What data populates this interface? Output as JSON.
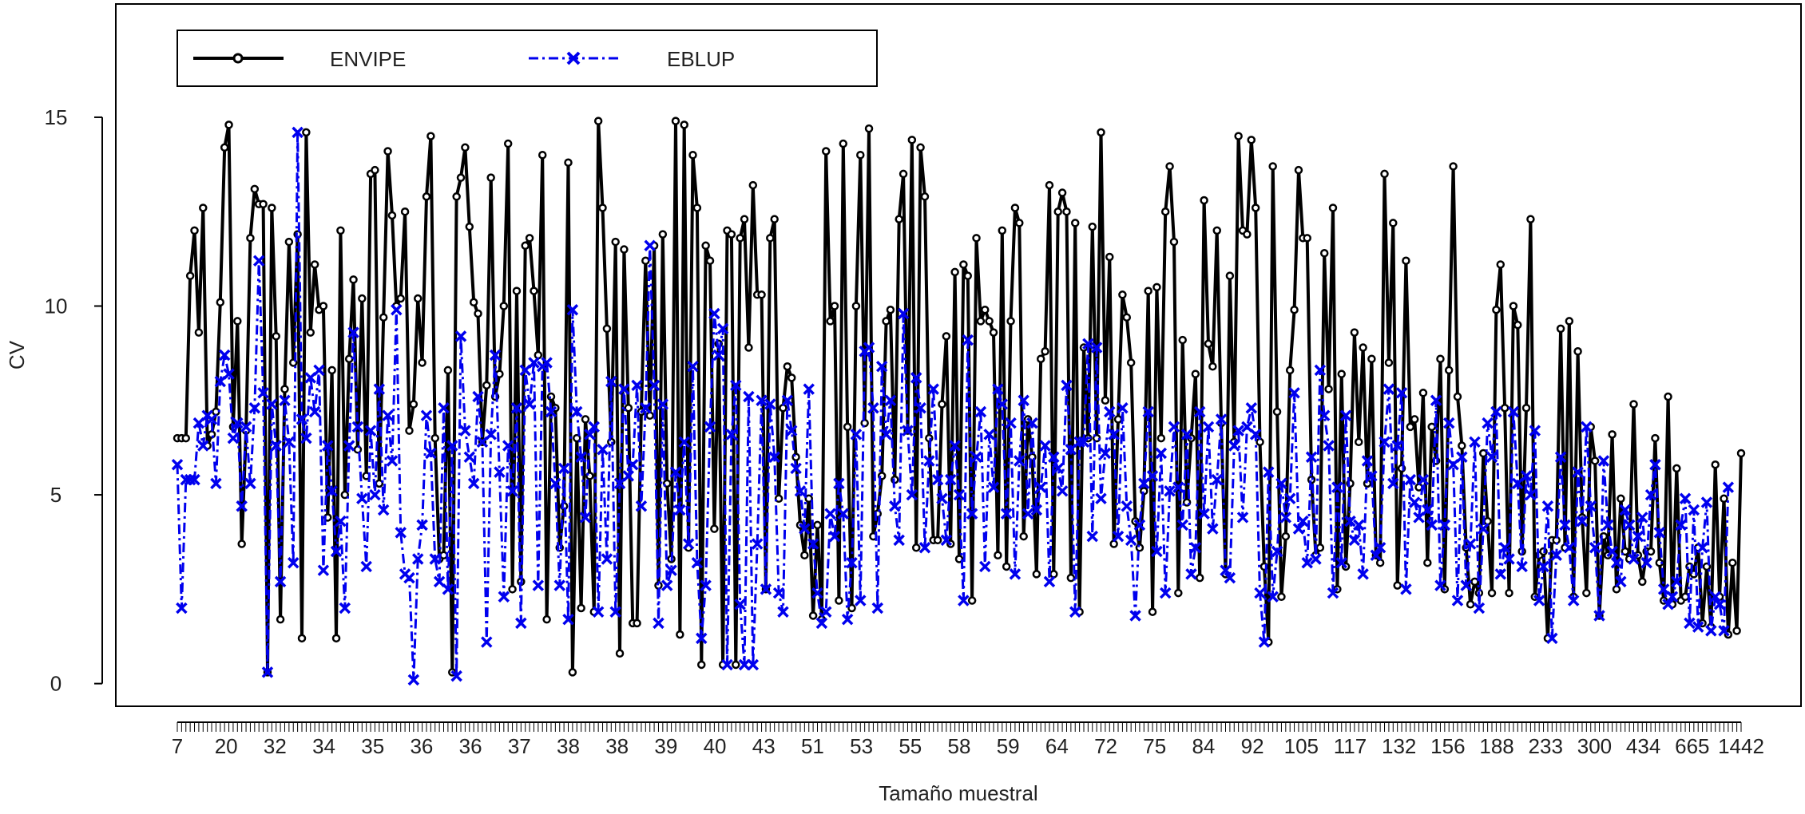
{
  "chart_data": {
    "type": "line",
    "xlabel": "Tamaño muestral",
    "ylabel": "CV",
    "ylim": [
      -0.6,
      18
    ],
    "yticks": [
      0,
      5,
      10,
      15
    ],
    "grid": false,
    "legend_position": "top-left",
    "x_tick_labels": [
      "7",
      "20",
      "32",
      "34",
      "35",
      "36",
      "36",
      "37",
      "38",
      "38",
      "39",
      "40",
      "43",
      "51",
      "53",
      "55",
      "58",
      "59",
      "64",
      "72",
      "75",
      "84",
      "92",
      "105",
      "117",
      "132",
      "156",
      "188",
      "233",
      "300",
      "434",
      "665",
      "1442"
    ],
    "series": [
      {
        "name": "ENVIPE",
        "color": "#000000",
        "marker": "circle",
        "line_style": "solid",
        "values": [
          6.5,
          6.5,
          6.5,
          10.8,
          12,
          9.3,
          12.6,
          6.3,
          6.6,
          7.2,
          10.1,
          14.2,
          14.8,
          6.8,
          9.6,
          3.7,
          6.7,
          11.8,
          13.1,
          12.7,
          12.7,
          0.3,
          12.6,
          9.2,
          1.7,
          7.8,
          11.7,
          8.5,
          11.9,
          1.2,
          14.6,
          9.3,
          11.1,
          9.9,
          10,
          4.4,
          8.3,
          1.2,
          12,
          5,
          8.6,
          10.7,
          6.2,
          10.2,
          5.5,
          13.5,
          13.6,
          5.3,
          9.7,
          14.1,
          12.4,
          10,
          10.2,
          12.5,
          6.7,
          7.4,
          10.2,
          8.5,
          12.9,
          14.5,
          6.5,
          3.3,
          3.4,
          8.3,
          0.3,
          12.9,
          13.4,
          14.2,
          12.1,
          10.1,
          9.8,
          6.4,
          7.9,
          13.4,
          7.6,
          8.2,
          10,
          14.3,
          2.5,
          10.4,
          2.7,
          11.6,
          11.8,
          10.4,
          8.7,
          14,
          1.7,
          7.6,
          7.3,
          3.6,
          4.7,
          13.8,
          0.3,
          6.5,
          2,
          7,
          5.5,
          1.9,
          14.9,
          12.6,
          9.4,
          6.4,
          11.7,
          0.8,
          11.5,
          7.3,
          1.6,
          1.6,
          7.2,
          11.2,
          7.1,
          11.6,
          2.6,
          11.9,
          5.3,
          3.3,
          14.9,
          1.3,
          14.8,
          3.6,
          14,
          12.6,
          0.5,
          11.6,
          11.2,
          4.1,
          9,
          0.5,
          12,
          11.9,
          0.5,
          11.8,
          12.3,
          8.9,
          13.2,
          10.3,
          10.3,
          2.5,
          11.8,
          12.3,
          4.9,
          7.3,
          8.4,
          8.1,
          6,
          4.2,
          3.4,
          4.9,
          1.8,
          4.2,
          1.7,
          14.1,
          9.6,
          10,
          2.2,
          14.3,
          6.8,
          2,
          10,
          14,
          6.9,
          14.7,
          3.9,
          4.5,
          5.5,
          9.6,
          9.9,
          5.4,
          12.3,
          13.5,
          6.7,
          14.4,
          3.6,
          14.2,
          12.9,
          6.5,
          3.8,
          3.8,
          7.4,
          9.2,
          3.7,
          10.9,
          3.3,
          11.1,
          10.8,
          2.2,
          11.8,
          9.6,
          9.9,
          9.6,
          9.3,
          3.4,
          12,
          3.1,
          9.6,
          12.6,
          12.2,
          3.9,
          7,
          6,
          2.9,
          8.6,
          8.8,
          13.2,
          2.9,
          12.5,
          13,
          12.5,
          2.8,
          12.2,
          1.9,
          8.9,
          6.5,
          12.1,
          6.5,
          14.6,
          7.5,
          11.3,
          3.7,
          7,
          10.3,
          9.7,
          8.5,
          4.3,
          3.6,
          5.1,
          10.4,
          1.9,
          10.5,
          6.5,
          12.5,
          13.7,
          11.7,
          2.4,
          9.1,
          4.8,
          6.5,
          8.2,
          2.8,
          12.8,
          9,
          8.4,
          12,
          6.9,
          2.9,
          10.8,
          6.4,
          14.5,
          12,
          11.9,
          14.4,
          12.6,
          6.4,
          3.1,
          1.1,
          13.7,
          7.2,
          2.3,
          3.9,
          8.3,
          9.9,
          13.6,
          11.8,
          11.8,
          5.4,
          3.4,
          3.6,
          11.4,
          7.8,
          12.6,
          2.5,
          8.2,
          3.1,
          5.3,
          9.3,
          6.4,
          8.9,
          5.3,
          8.6,
          3.4,
          3.2,
          13.5,
          8.5,
          12.2,
          2.6,
          5.7,
          11.2,
          6.8,
          7,
          5.2,
          7.7,
          3.2,
          6.8,
          5.9,
          8.6,
          2.5,
          8.3,
          13.7,
          7.6,
          6.3,
          3.6,
          2.1,
          2.7,
          2.4,
          6.1,
          4.3,
          2.4,
          9.9,
          11.1,
          7.3,
          2.4,
          10,
          9.5,
          3.5,
          7.3,
          12.3,
          2.3,
          3.4,
          3.5,
          1.2,
          3.8,
          3.8,
          9.4,
          3.6,
          9.6,
          2.3,
          8.8,
          4.4,
          2.4,
          6.8,
          5.9,
          1.8,
          3.9,
          3.4,
          6.6,
          2.5,
          4.9,
          3.5,
          3.3,
          7.4,
          3.4,
          2.7,
          3.5,
          3.5,
          6.5,
          3.2,
          2.2,
          7.6,
          2.1,
          5.7,
          2.2,
          2.3,
          3.1,
          2.9,
          3.6,
          1.6,
          3.1,
          1.5,
          5.8,
          2.3,
          4.9,
          1.3,
          3.2,
          1.4,
          6.1
        ]
      },
      {
        "name": "EBLUP",
        "color": "#0000ee",
        "marker": "x",
        "line_style": "dotdash",
        "values": [
          5.8,
          2,
          5.4,
          5.4,
          5.4,
          6.9,
          6.3,
          7.1,
          7,
          5.3,
          8,
          8.7,
          8.2,
          6.5,
          6.9,
          4.7,
          6.8,
          5.3,
          7.3,
          11.2,
          7.7,
          0.3,
          7.4,
          6.3,
          2.7,
          7.5,
          6.4,
          3.2,
          14.6,
          7,
          6.5,
          8.1,
          7.2,
          8.3,
          3,
          6.3,
          5.1,
          3.5,
          4.3,
          2,
          6.3,
          9.3,
          6.8,
          4.9,
          3.1,
          6.7,
          5,
          7.8,
          4.6,
          7.1,
          5.9,
          9.9,
          4,
          2.9,
          2.8,
          0.1,
          3.3,
          4.2,
          7.1,
          6.1,
          3.3,
          2.7,
          7.3,
          2.5,
          6.3,
          0.2,
          9.2,
          6.7,
          6,
          5.3,
          7.6,
          6.4,
          1.1,
          6.6,
          8.7,
          5.6,
          2.3,
          6.3,
          5.1,
          7.3,
          1.6,
          8.3,
          7.4,
          8.5,
          2.6,
          8.4,
          8.5,
          7.2,
          5.3,
          2.6,
          5.7,
          1.7,
          9.9,
          7.2,
          6,
          4.4,
          6.6,
          6.8,
          1.9,
          6.2,
          3.3,
          8,
          1.9,
          5.3,
          7.8,
          5.5,
          5.8,
          7.9,
          4.7,
          7.3,
          11.6,
          7.9,
          1.6,
          7.4,
          2.6,
          3,
          5.6,
          4.6,
          6.4,
          3.7,
          8.4,
          3.2,
          1.2,
          2.6,
          6.8,
          9.8,
          8.7,
          9.4,
          0.5,
          6.6,
          7.9,
          2.1,
          0.5,
          7.6,
          0.5,
          3.7,
          7.5,
          2.5,
          7.4,
          6,
          2.4,
          1.9,
          7.5,
          6.7,
          5.7,
          5.1,
          4.1,
          7.8,
          3.7,
          2.4,
          1.6,
          1.9,
          4.5,
          3.9,
          5.3,
          4.5,
          1.7,
          3.2,
          6.6,
          2.2,
          8.8,
          8.9,
          7.3,
          2,
          8.4,
          6.6,
          7.5,
          4.7,
          3.8,
          9.8,
          6.7,
          5,
          8.1,
          7.3,
          3.6,
          5.9,
          7.8,
          5.4,
          4.9,
          3.8,
          5.4,
          6.3,
          5,
          2.2,
          9.1,
          4.5,
          6,
          7.2,
          3.1,
          6.6,
          5.2,
          7.8,
          7.4,
          4.5,
          6.9,
          2.9,
          5.9,
          7.5,
          4.5,
          6.9,
          4.6,
          5.2,
          6.3,
          2.7,
          6,
          5.7,
          5.1,
          7.9,
          6.2,
          1.9,
          6.4,
          6.4,
          9,
          3.9,
          8.9,
          4.9,
          6.1,
          7.2,
          6.6,
          3.9,
          7.3,
          4.7,
          3.8,
          1.8,
          4.2,
          5.3,
          7.2,
          5.5,
          3.5,
          6.1,
          2.4,
          5.1,
          6.8,
          5.2,
          4.2,
          6.6,
          2.9,
          3.6,
          7.2,
          4.5,
          6.8,
          4.1,
          5.4,
          7,
          3,
          2.8,
          6.3,
          6.7,
          4.4,
          6.8,
          7.3,
          6.6,
          2.4,
          1.1,
          5.6,
          2.3,
          3.5,
          5.3,
          4.4,
          4.9,
          7.7,
          4.1,
          4.3,
          3.2,
          6,
          3.3,
          8.3,
          7.1,
          6.3,
          2.4,
          5.2,
          3.2,
          7.1,
          4.3,
          3.8,
          4.2,
          2.9,
          5.9,
          5.5,
          3.4,
          3.6,
          6.4,
          7.8,
          5.3,
          6.3,
          7.7,
          2.5,
          5.4,
          4.8,
          4.4,
          5.4,
          4.6,
          4.2,
          7.5,
          2.6,
          4.2,
          6.9,
          5.8,
          2.2,
          6,
          2.6,
          3.7,
          6.4,
          2,
          4.1,
          6.9,
          6,
          7.2,
          2.9,
          3.6,
          3.3,
          7.2,
          5.3,
          3.1,
          5.5,
          5,
          6.7,
          2.2,
          3.1,
          4.7,
          1.2,
          3.4,
          6,
          4.2,
          3.6,
          2.2,
          5.6,
          4.3,
          6.8,
          4.7,
          3.6,
          1.8,
          5.9,
          4.2,
          3.5,
          3.2,
          2.7,
          4.6,
          4.2,
          3.3,
          3.9,
          4.4,
          3.2,
          5,
          5.8,
          4,
          2.5,
          2.1,
          2.3,
          2.7,
          4.2,
          4.9,
          1.6,
          4.6,
          1.5,
          3.6,
          4.8,
          1.4,
          2.3,
          2.1,
          1.4,
          5.2
        ]
      }
    ]
  },
  "legend": {
    "items": [
      {
        "label": "ENVIPE",
        "color": "#000000",
        "marker": "circle"
      },
      {
        "label": "EBLUP",
        "color": "#0000ee",
        "marker": "x"
      }
    ]
  }
}
